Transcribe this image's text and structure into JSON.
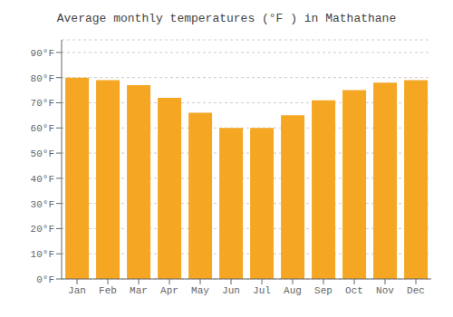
{
  "chart_data": {
    "type": "bar",
    "title": "Average monthly temperatures (°F ) in Mathathane",
    "categories": [
      "Jan",
      "Feb",
      "Mar",
      "Apr",
      "May",
      "Jun",
      "Jul",
      "Aug",
      "Sep",
      "Oct",
      "Nov",
      "Dec"
    ],
    "values": [
      80,
      79,
      77,
      72,
      66,
      60,
      60,
      65,
      71,
      75,
      78,
      79
    ],
    "color": "#F5A623",
    "ylim": [
      0,
      95
    ],
    "yticks": [
      {
        "value": 0,
        "label": "0°F"
      },
      {
        "value": 10,
        "label": "10°F"
      },
      {
        "value": 20,
        "label": "20°F"
      },
      {
        "value": 30,
        "label": "30°F"
      },
      {
        "value": 40,
        "label": "40°F"
      },
      {
        "value": 50,
        "label": "50°F"
      },
      {
        "value": 60,
        "label": "60°F"
      },
      {
        "value": 70,
        "label": "70°F"
      },
      {
        "value": 80,
        "label": "80°F"
      },
      {
        "value": 90,
        "label": "90°F"
      }
    ],
    "grid": true
  }
}
